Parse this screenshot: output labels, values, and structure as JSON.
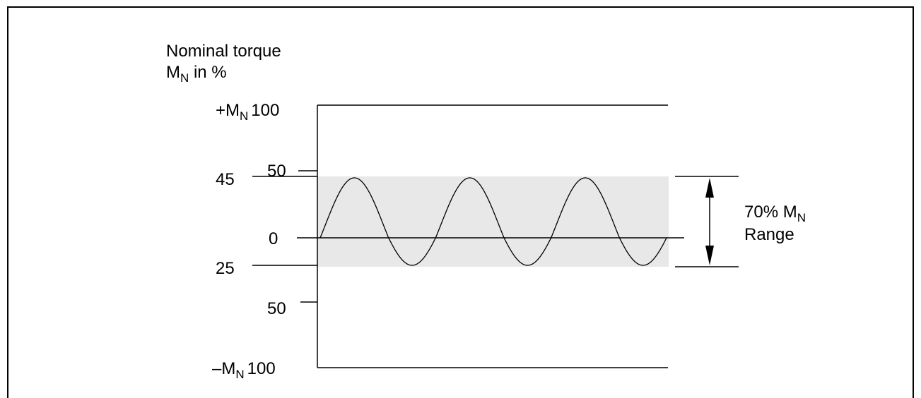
{
  "diagram": {
    "y_axis_label": {
      "line1": "Nominal torque",
      "line2_main": "M",
      "line2_sub": "N",
      "line2_rest": " in %"
    },
    "ticks": {
      "top": {
        "prefix": "+M",
        "sub": "N",
        "value": "100"
      },
      "bottom": {
        "prefix": "–M",
        "sub": "N",
        "value": "100"
      },
      "upper_50": "50",
      "upper_45": "45",
      "zero": "0",
      "lower_25": "25",
      "lower_50": "50"
    },
    "range_label": {
      "line1_main": "70% M",
      "line1_sub": "N",
      "line2": "Range"
    },
    "colors": {
      "band_fill": "#e8e8e8",
      "line": "#000000",
      "background": "#ffffff"
    },
    "waveform": {
      "cycles": 3,
      "max_percent": 45,
      "min_percent": -25,
      "range_percent": 70
    }
  }
}
